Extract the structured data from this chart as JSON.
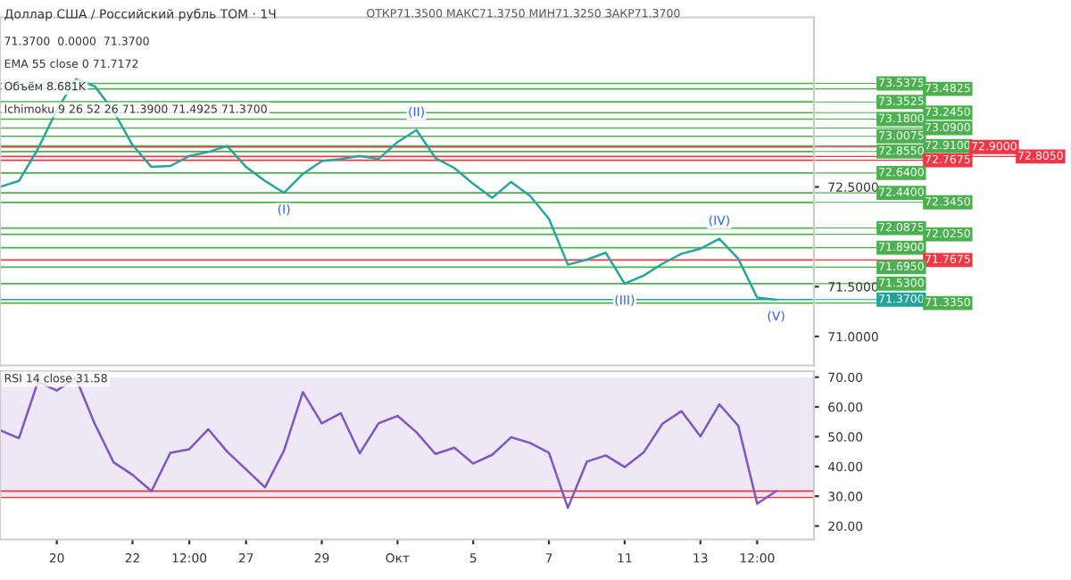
{
  "chart_data": [
    {
      "type": "line",
      "title": "Доллар США / Российский рубль TOM · 1Ч",
      "annotations": [
        "ОТКР71.3500 МАКС71.3750 МИН71.3250 ЗАКР71.3700",
        "71.3700  0.0000  71.3700",
        "EMA 55 close 0 71.7172",
        "Объём 8.681K",
        "Ichimoku 9 26 52 26 71.3900 71.4925 71.3700",
        {
          "text": "(I)",
          "y": 72.44
        },
        {
          "text": "(II)",
          "y": 73.07
        },
        {
          "text": "(III)",
          "y": 71.53
        },
        {
          "text": "(IV)",
          "y": 71.98
        },
        {
          "text": "(V)",
          "y": 71.37
        }
      ],
      "categories": [
        null,
        null,
        null,
        null,
        null,
        null,
        null,
        null,
        null,
        null,
        null,
        null,
        null,
        null,
        null,
        null,
        null,
        null,
        null,
        null,
        null,
        null,
        null,
        null,
        null,
        null,
        null,
        null,
        null,
        null,
        null,
        null,
        null,
        null,
        null,
        null,
        null,
        null,
        null,
        null,
        null,
        null,
        null,
        null
      ],
      "series": [
        {
          "color": "#26a69a",
          "values": [
            72.5,
            72.56,
            72.88,
            73.27,
            73.58,
            73.51,
            73.26,
            72.92,
            72.7,
            72.71,
            72.81,
            72.85,
            72.91,
            72.7,
            72.56,
            72.44,
            72.63,
            72.76,
            72.78,
            72.81,
            72.78,
            72.95,
            73.07,
            72.79,
            72.69,
            72.53,
            72.39,
            72.55,
            72.41,
            72.18,
            71.72,
            71.77,
            71.84,
            71.53,
            71.61,
            71.73,
            71.83,
            71.88,
            71.98,
            71.78,
            71.39,
            71.37,
            null,
            null
          ]
        }
      ],
      "ylim": [
        70.71,
        74.2
      ],
      "yticks": [
        {
          "value": 71.0,
          "label": "71.0000"
        },
        {
          "value": 71.5,
          "label": "71.5000"
        },
        {
          "value": 72.5,
          "label": "72.5000"
        }
      ],
      "tick_labels": "y",
      "ref_lines": [
        {
          "axis": "y",
          "value": 73.5375,
          "label": "73.5375",
          "color": "#4caf50"
        },
        {
          "axis": "y",
          "value": 73.4825,
          "label": "73.4825",
          "color": "#4caf50"
        },
        {
          "axis": "y",
          "value": 73.3525,
          "label": "73.3525",
          "color": "#4caf50"
        },
        {
          "axis": "y",
          "value": 73.245,
          "label": "73.2450",
          "color": "#4caf50"
        },
        {
          "axis": "y",
          "value": 73.18,
          "label": "73.1800",
          "color": "#4caf50"
        },
        {
          "axis": "y",
          "value": 73.09,
          "label": "73.0900",
          "color": "#4caf50"
        },
        {
          "axis": "y",
          "value": 73.0075,
          "label": "73.0075",
          "color": "#4caf50"
        },
        {
          "axis": "y",
          "value": 72.91,
          "label": "72.9100",
          "color": "#4caf50"
        },
        {
          "axis": "y",
          "value": 72.9,
          "label": "72.9000",
          "color": "#f23645"
        },
        {
          "axis": "y",
          "value": 72.855,
          "label": "72.8550",
          "color": "#4caf50"
        },
        {
          "axis": "y",
          "value": 72.805,
          "label": "72.8050",
          "color": "#f23645"
        },
        {
          "axis": "y",
          "value": 72.7675,
          "label": "72.7675",
          "color": "#f23645"
        },
        {
          "axis": "y",
          "value": 72.64,
          "label": "72.6400",
          "color": "#4caf50"
        },
        {
          "axis": "y",
          "value": 72.44,
          "label": "72.4400",
          "color": "#4caf50"
        },
        {
          "axis": "y",
          "value": 72.345,
          "label": "72.3450",
          "color": "#4caf50"
        },
        {
          "axis": "y",
          "value": 72.0875,
          "label": "72.0875",
          "color": "#4caf50"
        },
        {
          "axis": "y",
          "value": 72.025,
          "label": "72.0250",
          "color": "#4caf50"
        },
        {
          "axis": "y",
          "value": 71.89,
          "label": "71.8900",
          "color": "#4caf50"
        },
        {
          "axis": "y",
          "value": 71.7675,
          "label": "71.7675",
          "color": "#f23645"
        },
        {
          "axis": "y",
          "value": 71.695,
          "label": "71.6950",
          "color": "#4caf50"
        },
        {
          "axis": "y",
          "value": 71.53,
          "label": "71.5300",
          "color": "#4caf50"
        },
        {
          "axis": "y",
          "value": 71.37,
          "label": "71.3700",
          "color": "#22a39a"
        },
        {
          "axis": "y",
          "value": 71.335,
          "label": "71.3350",
          "color": "#4caf50"
        }
      ]
    },
    {
      "type": "line",
      "annotations": [
        "RSI 14 close 31.58"
      ],
      "categories": [
        null,
        null,
        null,
        "20",
        null,
        null,
        null,
        "22",
        null,
        null,
        "12:00",
        null,
        null,
        "27",
        null,
        null,
        null,
        "29",
        null,
        null,
        null,
        "Окт",
        null,
        null,
        null,
        "5",
        null,
        null,
        null,
        "7",
        null,
        null,
        null,
        "11",
        null,
        null,
        null,
        "13",
        null,
        null,
        "12:00",
        null,
        null,
        null
      ],
      "series": [
        {
          "color": "#7e57c2",
          "values": [
            52.2,
            49.5,
            68.4,
            65.5,
            69.8,
            54.4,
            41.4,
            37.2,
            31.7,
            44.6,
            45.8,
            52.5,
            45,
            39,
            33,
            45.3,
            65,
            54.5,
            57.9,
            44.4,
            54.5,
            57,
            51.5,
            44.2,
            46.3,
            41,
            43.9,
            49.8,
            47.9,
            44.6,
            26.1,
            41.6,
            43.7,
            39.8,
            44.7,
            54.4,
            58.6,
            50.1,
            60.9,
            53.7,
            27.5,
            31.7,
            null,
            null
          ]
        }
      ],
      "ylim": [
        15.5,
        72
      ],
      "yticks": [
        {
          "value": 20,
          "label": "20.00"
        },
        {
          "value": 30,
          "label": "30.00"
        },
        {
          "value": 40,
          "label": "40.00"
        },
        {
          "value": 50,
          "label": "50.00"
        },
        {
          "value": 60,
          "label": "60.00"
        },
        {
          "value": 70,
          "label": "70.00"
        }
      ],
      "bands": [
        {
          "axis": "y",
          "from": 30,
          "to": 70,
          "color": "#ede7f6"
        }
      ],
      "ref_lines": [
        {
          "axis": "y",
          "value": 31.7,
          "color": "#f23645"
        },
        {
          "axis": "y",
          "value": 29.6,
          "color": "#f23645"
        }
      ]
    }
  ]
}
